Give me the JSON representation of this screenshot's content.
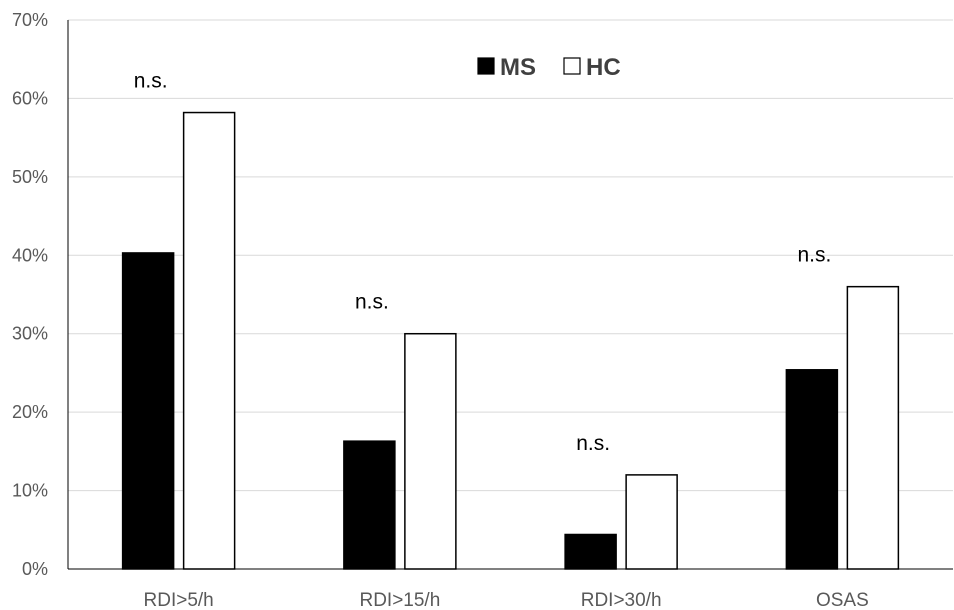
{
  "chart_data": {
    "type": "bar",
    "categories": [
      "RDI>5/h",
      "RDI>15/h",
      "RDI>30/h",
      "OSAS"
    ],
    "series": [
      {
        "name": "MS",
        "values": [
          40.3,
          16.3,
          4.4,
          25.4
        ],
        "color": "#000000"
      },
      {
        "name": "HC",
        "values": [
          58.2,
          30.0,
          12.0,
          36.0
        ],
        "color": "#ffffff"
      }
    ],
    "annotations": [
      "n.s.",
      "n.s.",
      "n.s.",
      "n.s."
    ],
    "ylim": [
      0,
      70
    ],
    "yticks": [
      0,
      10,
      20,
      30,
      40,
      50,
      60,
      70
    ],
    "ytick_labels": [
      "0%",
      "10%",
      "20%",
      "30%",
      "40%",
      "50%",
      "60%",
      "70%"
    ],
    "grid": true,
    "legend_position": "top-center",
    "title": "",
    "xlabel": "",
    "ylabel": ""
  }
}
